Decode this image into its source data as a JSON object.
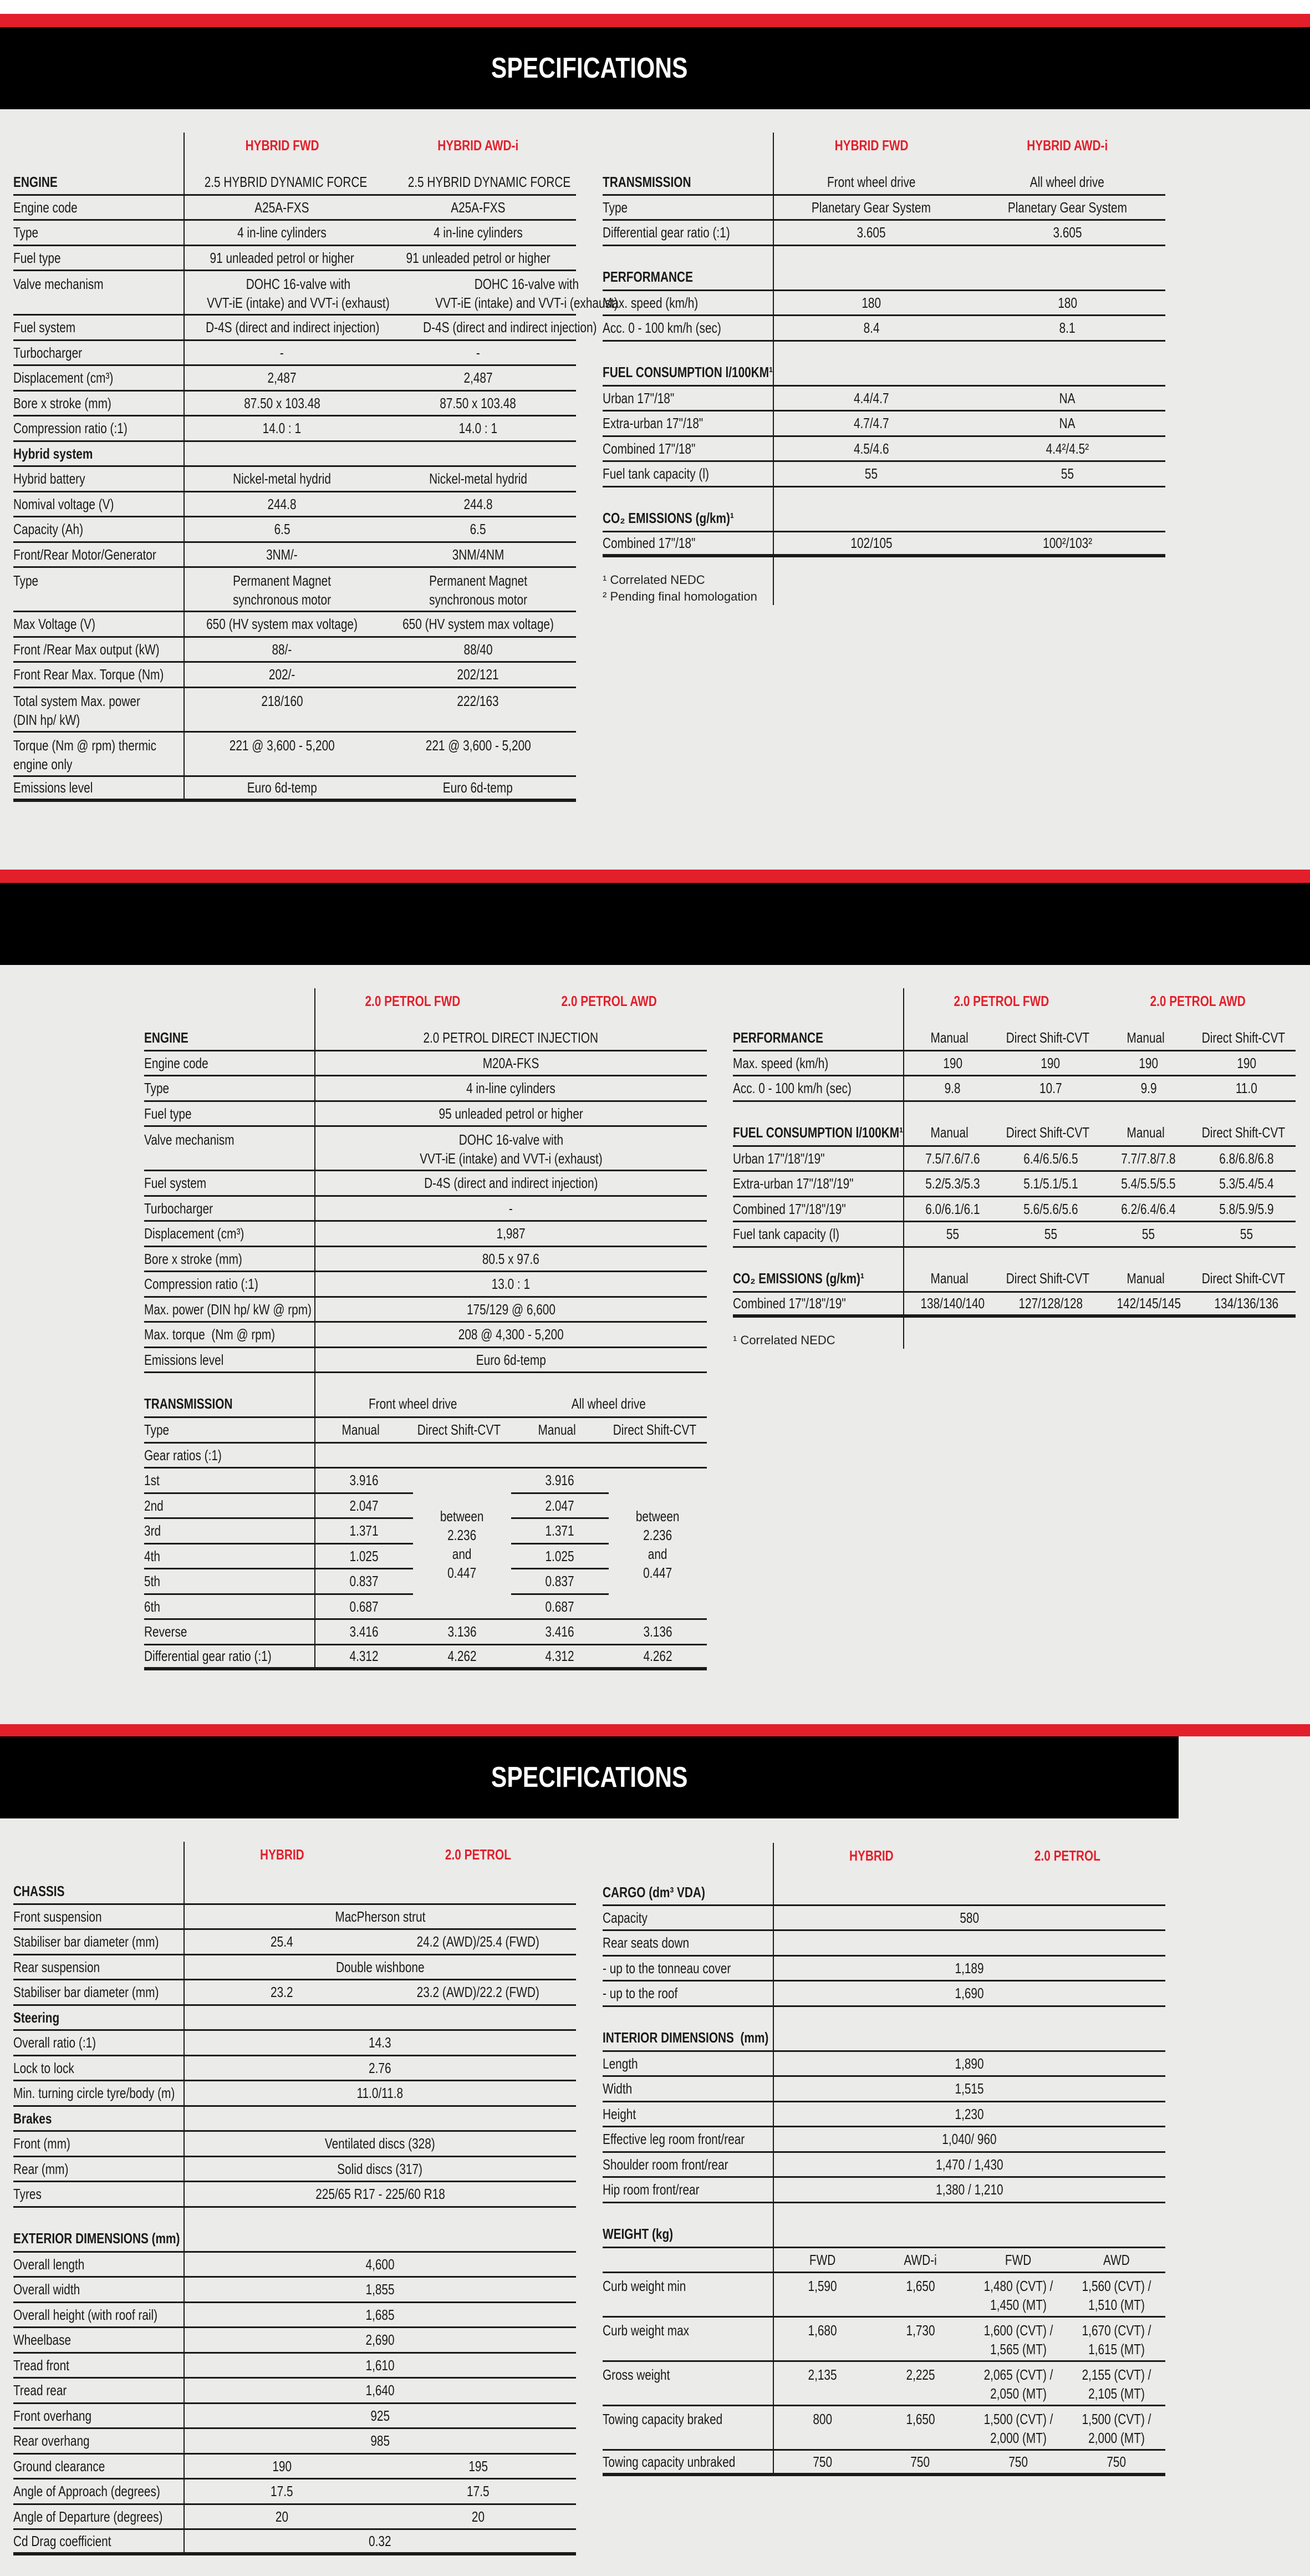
{
  "page_title": "SPECIFICATIONS",
  "colors": {
    "accent_red": "#e31f2b",
    "band_black": "#000000",
    "background": "#ebebe9"
  },
  "tables": [
    {
      "id": "hybrid-engine-table",
      "ncols": 2,
      "headers": [
        "HYBRID FWD",
        "HYBRID AWD-i"
      ],
      "rows": [
        {
          "label": "ENGINE",
          "kind": "section",
          "values": [
            "2.5 HYBRID DYNAMIC FORCE",
            "2.5 HYBRID DYNAMIC FORCE"
          ]
        },
        {
          "label": "Engine code",
          "values": [
            "A25A-FXS",
            "A25A-FXS"
          ]
        },
        {
          "label": "Type",
          "values": [
            "4 in-line cylinders",
            "4 in-line cylinders"
          ]
        },
        {
          "label": "Fuel type",
          "values": [
            "91 unleaded petrol or higher",
            "91 unleaded petrol or higher"
          ]
        },
        {
          "label": "Valve mechanism",
          "values": [
            "DOHC 16-valve with\nVVT-iE (intake) and VVT-i (exhaust)",
            "DOHC 16-valve with\nVVT-iE (intake) and VVT-i (exhaust)"
          ]
        },
        {
          "label": "Fuel system",
          "values": [
            "D-4S (direct and indirect injection)",
            "D-4S (direct and indirect injection)"
          ]
        },
        {
          "label": "Turbocharger",
          "values": [
            "-",
            "-"
          ]
        },
        {
          "label": "Displacement (cm³)",
          "values": [
            "2,487",
            "2,487"
          ]
        },
        {
          "label": "Bore x stroke (mm)",
          "values": [
            "87.50 x 103.48",
            "87.50 x 103.48"
          ]
        },
        {
          "label": "Compression ratio (:1)",
          "values": [
            "14.0 : 1",
            "14.0 : 1"
          ]
        },
        {
          "label": "Hybrid system",
          "kind": "subsection",
          "values": []
        },
        {
          "label": "Hybrid battery",
          "values": [
            "Nickel-metal hydrid",
            "Nickel-metal hydrid"
          ]
        },
        {
          "label": "Nomival voltage (V)",
          "values": [
            "244.8",
            "244.8"
          ]
        },
        {
          "label": "Capacity (Ah)",
          "values": [
            "6.5",
            "6.5"
          ]
        },
        {
          "label": "Front/Rear Motor/Generator",
          "values": [
            "3NM/-",
            "3NM/4NM"
          ]
        },
        {
          "label": "Type",
          "values": [
            "Permanent Magnet\nsynchronous motor",
            "Permanent Magnet\nsynchronous motor"
          ]
        },
        {
          "label": "Max Voltage (V)",
          "values": [
            "650 (HV system max voltage)",
            "650 (HV system max voltage)"
          ]
        },
        {
          "label": "Front /Rear Max output (kW)",
          "values": [
            "88/-",
            "88/40"
          ]
        },
        {
          "label": "Front Rear Max. Torque (Nm)",
          "values": [
            "202/-",
            "202/121"
          ]
        },
        {
          "label": "Total system Max. power\n(DIN hp/ kW)",
          "values": [
            "218/160",
            "222/163"
          ]
        },
        {
          "label": "Torque (Nm @ rpm) thermic\nengine only",
          "values": [
            "221 @ 3,600 - 5,200",
            "221 @ 3,600 - 5,200"
          ]
        },
        {
          "label": "Emissions level",
          "values": [
            "Euro 6d-temp",
            "Euro 6d-temp"
          ]
        }
      ],
      "footnotes": []
    },
    {
      "id": "hybrid-performance-table",
      "ncols": 2,
      "headers": [
        "HYBRID FWD",
        "HYBRID AWD-i"
      ],
      "rows": [
        {
          "label": "TRANSMISSION",
          "kind": "section",
          "values": [
            "Front wheel drive",
            "All wheel drive"
          ]
        },
        {
          "label": "Type",
          "values": [
            "Planetary Gear System",
            "Planetary Gear System"
          ]
        },
        {
          "label": "Differential gear ratio (:1)",
          "values": [
            "3.605",
            "3.605"
          ]
        },
        {
          "label": "PERFORMANCE",
          "kind": "section",
          "gap": true,
          "values": []
        },
        {
          "label": "Max. speed (km/h)",
          "values": [
            "180",
            "180"
          ]
        },
        {
          "label": "Acc. 0 - 100 km/h (sec)",
          "values": [
            "8.4",
            "8.1"
          ]
        },
        {
          "label": "FUEL CONSUMPTION l/100KM¹",
          "kind": "section",
          "gap": true,
          "values": []
        },
        {
          "label": "Urban 17\"/18\"",
          "values": [
            "4.4/4.7",
            "NA"
          ]
        },
        {
          "label": "Extra-urban 17\"/18\"",
          "values": [
            "4.7/4.7",
            "NA"
          ]
        },
        {
          "label": "Combined 17\"/18\"",
          "values": [
            "4.5/4.6",
            "4.4²/4.5²"
          ]
        },
        {
          "label": "Fuel tank capacity (l)",
          "values": [
            "55",
            "55"
          ]
        },
        {
          "label": "CO₂ EMISSIONS (g/km)¹",
          "kind": "section",
          "gap": true,
          "values": []
        },
        {
          "label": "Combined 17\"/18\"",
          "values": [
            "102/105",
            "100²/103²"
          ]
        }
      ],
      "footnotes": [
        "¹ Correlated NEDC",
        "² Pending final homologation"
      ]
    },
    {
      "id": "petrol-engine-table",
      "ncols": 4,
      "headers": [
        "2.0 PETROL FWD",
        "2.0 PETROL AWD"
      ],
      "rows": [
        {
          "label": "ENGINE",
          "kind": "section",
          "values": [
            "2.0 PETROL DIRECT INJECTION"
          ]
        },
        {
          "label": "Engine code",
          "values": [
            "M20A-FKS"
          ]
        },
        {
          "label": "Type",
          "values": [
            "4 in-line cylinders"
          ]
        },
        {
          "label": "Fuel type",
          "values": [
            "95 unleaded petrol or higher"
          ]
        },
        {
          "label": "Valve mechanism",
          "values": [
            "DOHC 16-valve with\nVVT-iE (intake) and VVT-i (exhaust)"
          ]
        },
        {
          "label": "Fuel system",
          "values": [
            "D-4S (direct and indirect injection)"
          ]
        },
        {
          "label": "Turbocharger",
          "values": [
            "-"
          ]
        },
        {
          "label": "Displacement (cm³)",
          "values": [
            "1,987"
          ]
        },
        {
          "label": "Bore x stroke (mm)",
          "values": [
            "80.5 x 97.6"
          ]
        },
        {
          "label": "Compression ratio (:1)",
          "values": [
            "13.0 : 1"
          ]
        },
        {
          "label": "Max. power (DIN hp/ kW @ rpm)",
          "values": [
            "175/129 @ 6,600"
          ]
        },
        {
          "label": "Max. torque  (Nm @ rpm)",
          "values": [
            "208 @ 4,300 - 5,200"
          ]
        },
        {
          "label": "Emissions level",
          "values": [
            "Euro 6d-temp"
          ]
        },
        {
          "label": "TRANSMISSION",
          "kind": "section",
          "gap": true,
          "values": [
            "Front wheel drive",
            "All wheel drive"
          ]
        },
        {
          "label": "Type",
          "values": [
            "Manual",
            "Direct Shift-CVT",
            "Manual",
            "Direct Shift-CVT"
          ]
        },
        {
          "label": "Gear ratios (:1)",
          "values": []
        },
        {
          "label": "1st",
          "kind": "gear",
          "values": [
            "3.916",
            "",
            "3.916",
            ""
          ]
        },
        {
          "label": "2nd",
          "kind": "gear",
          "values": [
            "2.047",
            "",
            "2.047",
            ""
          ]
        },
        {
          "label": "3rd",
          "kind": "gear",
          "values": [
            "1.371",
            "",
            "1.371",
            ""
          ]
        },
        {
          "label": "4th",
          "kind": "gear",
          "values": [
            "1.025",
            "",
            "1.025",
            ""
          ]
        },
        {
          "label": "5th",
          "kind": "gear",
          "values": [
            "0.837",
            "",
            "0.837",
            ""
          ]
        },
        {
          "label": "6th",
          "kind": "gear",
          "values": [
            "0.687",
            "",
            "0.687",
            ""
          ]
        },
        {
          "label": "Reverse",
          "values": [
            "3.416",
            "3.136",
            "3.416",
            "3.136"
          ]
        },
        {
          "label": "Differential gear ratio (:1)",
          "values": [
            "4.312",
            "4.262",
            "4.312",
            "4.262"
          ]
        }
      ],
      "gear_cvt_merged": [
        "between\n2.236\nand\n0.447",
        "between\n2.236\nand\n0.447"
      ],
      "footnotes": []
    },
    {
      "id": "petrol-performance-table",
      "ncols": 4,
      "headers": [
        "2.0 PETROL FWD",
        "2.0 PETROL AWD"
      ],
      "rows": [
        {
          "label": "PERFORMANCE",
          "kind": "section",
          "values": [
            "Manual",
            "Direct Shift-CVT",
            "Manual",
            "Direct Shift-CVT"
          ]
        },
        {
          "label": "Max. speed (km/h)",
          "values": [
            "190",
            "190",
            "190",
            "190"
          ]
        },
        {
          "label": "Acc. 0 - 100 km/h (sec)",
          "values": [
            "9.8",
            "10.7",
            "9.9",
            "11.0"
          ]
        },
        {
          "label": "FUEL CONSUMPTION l/100KM¹",
          "kind": "section",
          "gap": true,
          "values": [
            "Manual",
            "Direct Shift-CVT",
            "Manual",
            "Direct Shift-CVT"
          ]
        },
        {
          "label": "Urban 17\"/18\"/19\"",
          "values": [
            "7.5/7.6/7.6",
            "6.4/6.5/6.5",
            "7.7/7.8/7.8",
            "6.8/6.8/6.8"
          ]
        },
        {
          "label": "Extra-urban 17\"/18\"/19\"",
          "values": [
            "5.2/5.3/5.3",
            "5.1/5.1/5.1",
            "5.4/5.5/5.5",
            "5.3/5.4/5.4"
          ]
        },
        {
          "label": "Combined 17\"/18\"/19\"",
          "values": [
            "6.0/6.1/6.1",
            "5.6/5.6/5.6",
            "6.2/6.4/6.4",
            "5.8/5.9/5.9"
          ]
        },
        {
          "label": "Fuel tank capacity (l)",
          "values": [
            "55",
            "55",
            "55",
            "55"
          ]
        },
        {
          "label": "CO₂ EMISSIONS (g/km)¹",
          "kind": "section",
          "gap": true,
          "values": [
            "Manual",
            "Direct Shift-CVT",
            "Manual",
            "Direct Shift-CVT"
          ]
        },
        {
          "label": "Combined 17\"/18\"/19\"",
          "values": [
            "138/140/140",
            "127/128/128",
            "142/145/145",
            "134/136/136"
          ]
        }
      ],
      "footnotes": [
        "¹ Correlated NEDC"
      ]
    },
    {
      "id": "chassis-dimensions-table",
      "ncols": 2,
      "headers": [
        "HYBRID",
        "2.0 PETROL"
      ],
      "rows": [
        {
          "label": "CHASSIS",
          "kind": "section",
          "values": []
        },
        {
          "label": "Front suspension",
          "values": [
            "MacPherson strut"
          ]
        },
        {
          "label": "Stabiliser bar diameter (mm)",
          "values": [
            "25.4",
            "24.2 (AWD)/25.4 (FWD)"
          ]
        },
        {
          "label": "Rear suspension",
          "values": [
            "Double wishbone"
          ]
        },
        {
          "label": "Stabiliser bar diameter (mm)",
          "values": [
            "23.2",
            "23.2 (AWD)/22.2 (FWD)"
          ]
        },
        {
          "label": "Steering",
          "kind": "subsection",
          "values": []
        },
        {
          "label": "Overall ratio (:1)",
          "values": [
            "14.3"
          ]
        },
        {
          "label": "Lock to lock",
          "values": [
            "2.76"
          ]
        },
        {
          "label": "Min. turning circle tyre/body (m)",
          "values": [
            "11.0/11.8"
          ]
        },
        {
          "label": "Brakes",
          "kind": "subsection",
          "values": []
        },
        {
          "label": "Front (mm)",
          "values": [
            "Ventilated discs (328)"
          ]
        },
        {
          "label": "Rear (mm)",
          "values": [
            "Solid discs (317)"
          ]
        },
        {
          "label": "Tyres",
          "values": [
            "225/65 R17 - 225/60 R18"
          ]
        },
        {
          "label": "EXTERIOR DIMENSIONS (mm)",
          "kind": "section",
          "gap": true,
          "values": []
        },
        {
          "label": "Overall length",
          "values": [
            "4,600"
          ]
        },
        {
          "label": "Overall width",
          "values": [
            "1,855"
          ]
        },
        {
          "label": "Overall height (with roof rail)",
          "values": [
            "1,685"
          ]
        },
        {
          "label": "Wheelbase",
          "values": [
            "2,690"
          ]
        },
        {
          "label": "Tread front",
          "values": [
            "1,610"
          ]
        },
        {
          "label": "Tread rear",
          "values": [
            "1,640"
          ]
        },
        {
          "label": "Front overhang",
          "values": [
            "925"
          ]
        },
        {
          "label": "Rear overhang",
          "values": [
            "985"
          ]
        },
        {
          "label": "Ground clearance",
          "values": [
            "190",
            "195"
          ]
        },
        {
          "label": "Angle of Approach (degrees)",
          "values": [
            "17.5",
            "17.5"
          ]
        },
        {
          "label": "Angle of Departure (degrees)",
          "values": [
            "20",
            "20"
          ]
        },
        {
          "label": "Cd Drag coefficient",
          "values": [
            "0.32"
          ]
        }
      ],
      "footnotes": []
    },
    {
      "id": "cargo-interior-weight-table",
      "ncols": 4,
      "headers": [
        "HYBRID",
        "2.0 PETROL"
      ],
      "rows": [
        {
          "label": "CARGO (dm³ VDA)",
          "kind": "section",
          "values": []
        },
        {
          "label": "Capacity",
          "values": [
            "580"
          ]
        },
        {
          "label": "Rear seats down",
          "values": []
        },
        {
          "label": "- up to the tonneau cover",
          "values": [
            "1,189"
          ]
        },
        {
          "label": "- up to the roof",
          "values": [
            "1,690"
          ]
        },
        {
          "label": "INTERIOR DIMENSIONS  (mm)",
          "kind": "section",
          "gap": true,
          "values": []
        },
        {
          "label": "Length",
          "values": [
            "1,890"
          ]
        },
        {
          "label": "Width",
          "values": [
            "1,515"
          ]
        },
        {
          "label": "Height",
          "values": [
            "1,230"
          ]
        },
        {
          "label": "Effective leg room front/rear",
          "values": [
            "1,040/ 960"
          ]
        },
        {
          "label": "Shoulder room front/rear",
          "values": [
            "1,470 / 1,430"
          ]
        },
        {
          "label": "Hip room front/rear",
          "values": [
            "1,380 / 1,210"
          ]
        },
        {
          "label": "WEIGHT (kg)",
          "kind": "section",
          "gap": true,
          "values": []
        },
        {
          "label": "",
          "values": [
            "FWD",
            "AWD-i",
            "FWD",
            "AWD"
          ]
        },
        {
          "label": "Curb weight min",
          "values": [
            "1,590",
            "1,650",
            "1,480 (CVT) /\n1,450 (MT)",
            "1,560 (CVT) /\n1,510 (MT)"
          ]
        },
        {
          "label": "Curb weight max",
          "values": [
            "1,680",
            "1,730",
            "1,600 (CVT) /\n1,565 (MT)",
            "1,670 (CVT) /\n1,615 (MT)"
          ]
        },
        {
          "label": "Gross weight",
          "values": [
            "2,135",
            "2,225",
            "2,065 (CVT) /\n2,050 (MT)",
            "2,155 (CVT) /\n2,105 (MT)"
          ]
        },
        {
          "label": "Towing capacity braked",
          "values": [
            "800",
            "1,650",
            "1,500 (CVT) /\n2,000 (MT)",
            "1,500 (CVT) /\n2,000 (MT)"
          ]
        },
        {
          "label": "Towing capacity unbraked",
          "values": [
            "750",
            "750",
            "750",
            "750"
          ]
        }
      ],
      "footnotes": []
    }
  ]
}
